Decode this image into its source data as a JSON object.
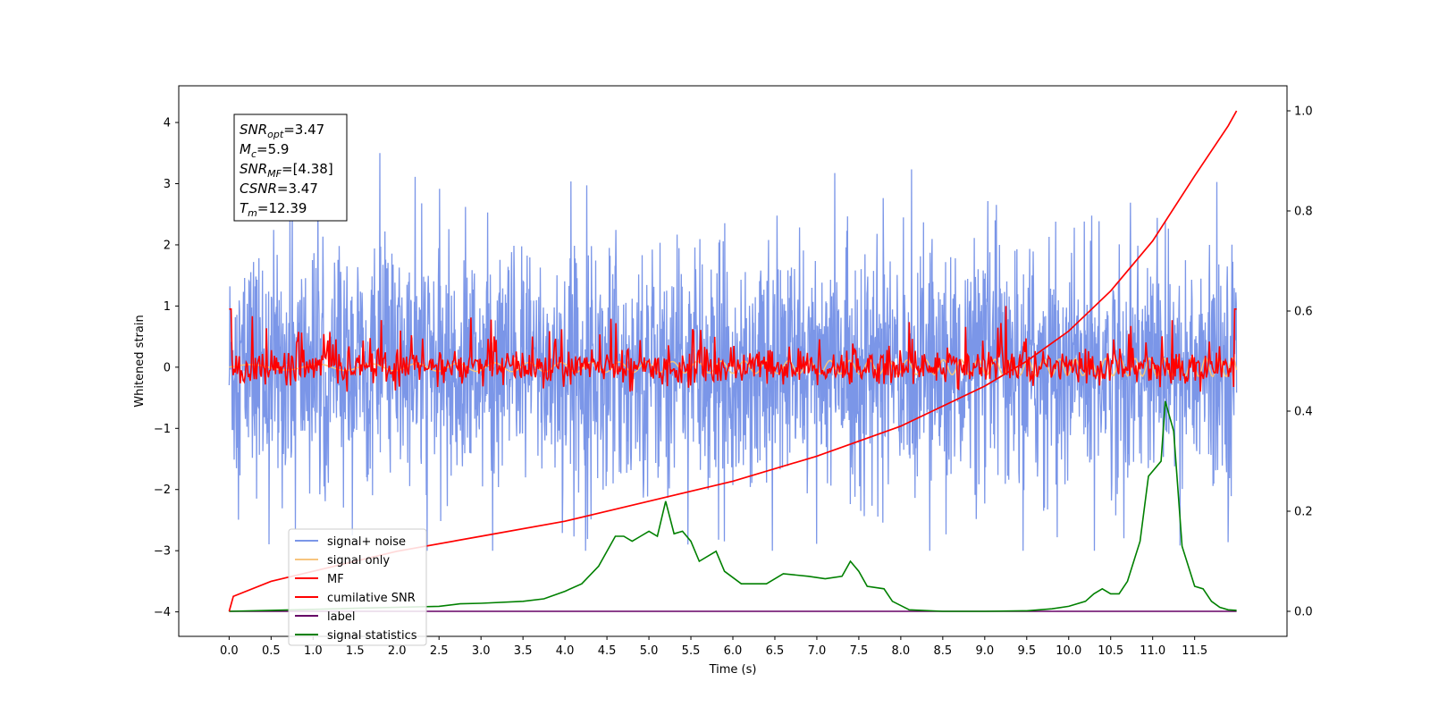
{
  "chart_data": {
    "type": "line",
    "xlabel": "Time (s)",
    "ylabel": "Whitened strain",
    "xlim": [
      -0.6,
      12.6
    ],
    "ylim": [
      -4.4,
      4.6
    ],
    "ylim_right": [
      -0.05,
      1.05
    ],
    "x_ticks": [
      "0.0",
      "0.5",
      "1.0",
      "1.5",
      "2.0",
      "2.5",
      "3.0",
      "3.5",
      "4.0",
      "4.5",
      "5.0",
      "5.5",
      "6.0",
      "6.5",
      "7.0",
      "7.5",
      "8.0",
      "8.5",
      "9.0",
      "9.5",
      "10.0",
      "10.5",
      "11.0",
      "11.5"
    ],
    "y_ticks": [
      "4",
      "3",
      "2",
      "1",
      "0",
      "−1",
      "−2",
      "−3",
      "−4"
    ],
    "y_ticks_right": [
      "1.0",
      "0.8",
      "0.6",
      "0.4",
      "0.2",
      "0.0"
    ],
    "grid": false,
    "legend_position": "lower-left",
    "annotation": {
      "lines": [
        {
          "var": "SNR",
          "sub": "opt",
          "value": "=3.47"
        },
        {
          "var": "M",
          "sub": "c",
          "value": "=5.9"
        },
        {
          "var": "SNR",
          "sub": "MF",
          "value": "=[4.38]"
        },
        {
          "var": "CSNR",
          "sub": "",
          "value": "=3.47"
        },
        {
          "var": "T",
          "sub": "m",
          "value": "=12.39"
        }
      ]
    },
    "series": [
      {
        "name": "signal+ noise",
        "color": "#7b96e8",
        "axis": "left",
        "description_values": {
          "x_range": [
            0.0,
            12.0
          ],
          "envelope_y": [
            -3.0,
            3.5
          ],
          "core_band_y": [
            -1.3,
            1.3
          ]
        }
      },
      {
        "name": "signal only",
        "color": "#f7c57e",
        "axis": "left",
        "description_values": {
          "x_range": [
            0.0,
            12.0
          ],
          "y_range": [
            -0.1,
            0.2
          ]
        }
      },
      {
        "name": "MF",
        "color": "#ff0000",
        "axis": "left",
        "description_values": {
          "x_range": [
            0.0,
            12.0
          ],
          "y_range": [
            -0.4,
            1.0
          ]
        }
      },
      {
        "name": "cumilative SNR",
        "color": "#ff0000",
        "axis": "right",
        "x": [
          0.0,
          0.05,
          0.5,
          1.0,
          2.0,
          3.0,
          4.0,
          5.0,
          6.0,
          7.0,
          8.0,
          9.0,
          9.5,
          10.0,
          10.5,
          11.0,
          11.5,
          11.9,
          12.0
        ],
        "y": [
          0.0,
          0.03,
          0.06,
          0.08,
          0.12,
          0.15,
          0.18,
          0.22,
          0.26,
          0.31,
          0.37,
          0.45,
          0.5,
          0.56,
          0.64,
          0.74,
          0.87,
          0.97,
          1.0
        ]
      },
      {
        "name": "label",
        "color": "#660066",
        "axis": "right",
        "x": [
          0.0,
          12.0
        ],
        "y": [
          0.0,
          0.0
        ]
      },
      {
        "name": "signal statistics",
        "color": "#008000",
        "axis": "right",
        "x": [
          0.0,
          0.5,
          1.0,
          1.5,
          2.0,
          2.5,
          2.75,
          3.0,
          3.5,
          3.75,
          4.0,
          4.2,
          4.4,
          4.6,
          4.7,
          4.8,
          4.9,
          5.0,
          5.1,
          5.2,
          5.3,
          5.4,
          5.5,
          5.6,
          5.8,
          5.9,
          6.1,
          6.4,
          6.6,
          6.9,
          7.1,
          7.3,
          7.4,
          7.5,
          7.6,
          7.8,
          7.9,
          8.1,
          8.5,
          9.0,
          9.5,
          9.8,
          10.0,
          10.2,
          10.3,
          10.4,
          10.5,
          10.6,
          10.7,
          10.85,
          10.95,
          11.1,
          11.15,
          11.25,
          11.35,
          11.5,
          11.6,
          11.7,
          11.8,
          11.9,
          12.0
        ],
        "y": [
          0.0,
          0.002,
          0.004,
          0.006,
          0.008,
          0.01,
          0.015,
          0.016,
          0.02,
          0.025,
          0.04,
          0.055,
          0.09,
          0.15,
          0.15,
          0.14,
          0.15,
          0.16,
          0.15,
          0.22,
          0.155,
          0.16,
          0.14,
          0.1,
          0.12,
          0.08,
          0.055,
          0.055,
          0.075,
          0.07,
          0.065,
          0.07,
          0.1,
          0.08,
          0.05,
          0.045,
          0.02,
          0.003,
          0.0,
          0.0,
          0.001,
          0.005,
          0.01,
          0.02,
          0.035,
          0.045,
          0.035,
          0.035,
          0.06,
          0.14,
          0.27,
          0.3,
          0.42,
          0.36,
          0.13,
          0.05,
          0.045,
          0.02,
          0.008,
          0.003,
          0.002
        ]
      }
    ]
  }
}
